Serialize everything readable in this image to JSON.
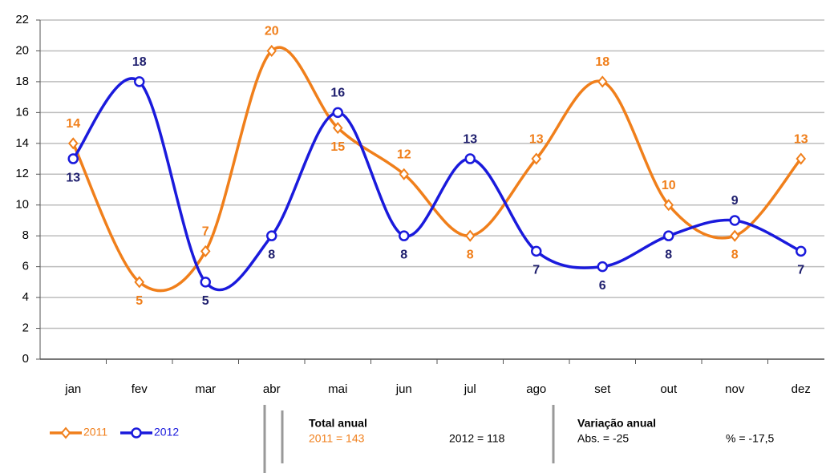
{
  "chart_data": {
    "type": "line",
    "categories": [
      "jan",
      "fev",
      "mar",
      "abr",
      "mai",
      "jun",
      "jul",
      "ago",
      "set",
      "out",
      "nov",
      "dez"
    ],
    "series": [
      {
        "name": "2011",
        "color": "#f07f1b",
        "label_color": "#f07f1b",
        "marker": "diamond",
        "values": [
          14,
          5,
          7,
          20,
          15,
          12,
          8,
          13,
          18,
          10,
          8,
          13
        ]
      },
      {
        "name": "2012",
        "color": "#1a1adc",
        "label_color": "#1f1f6e",
        "marker": "circle",
        "values": [
          13,
          18,
          5,
          8,
          16,
          8,
          13,
          7,
          6,
          8,
          9,
          7
        ]
      }
    ],
    "ylim": [
      0,
      22
    ],
    "yticks": [
      0,
      2,
      4,
      6,
      8,
      10,
      12,
      14,
      16,
      18,
      20,
      22
    ],
    "grid": true,
    "smooth": true,
    "legend": "bottom-left",
    "footer": {
      "total_title": "Total anual",
      "total_2011": "2011 = 143",
      "total_2012": "2012 = 118",
      "var_title": "Variação anual",
      "var_abs": "Abs. = -25",
      "var_pct": "% = -17,5"
    }
  }
}
